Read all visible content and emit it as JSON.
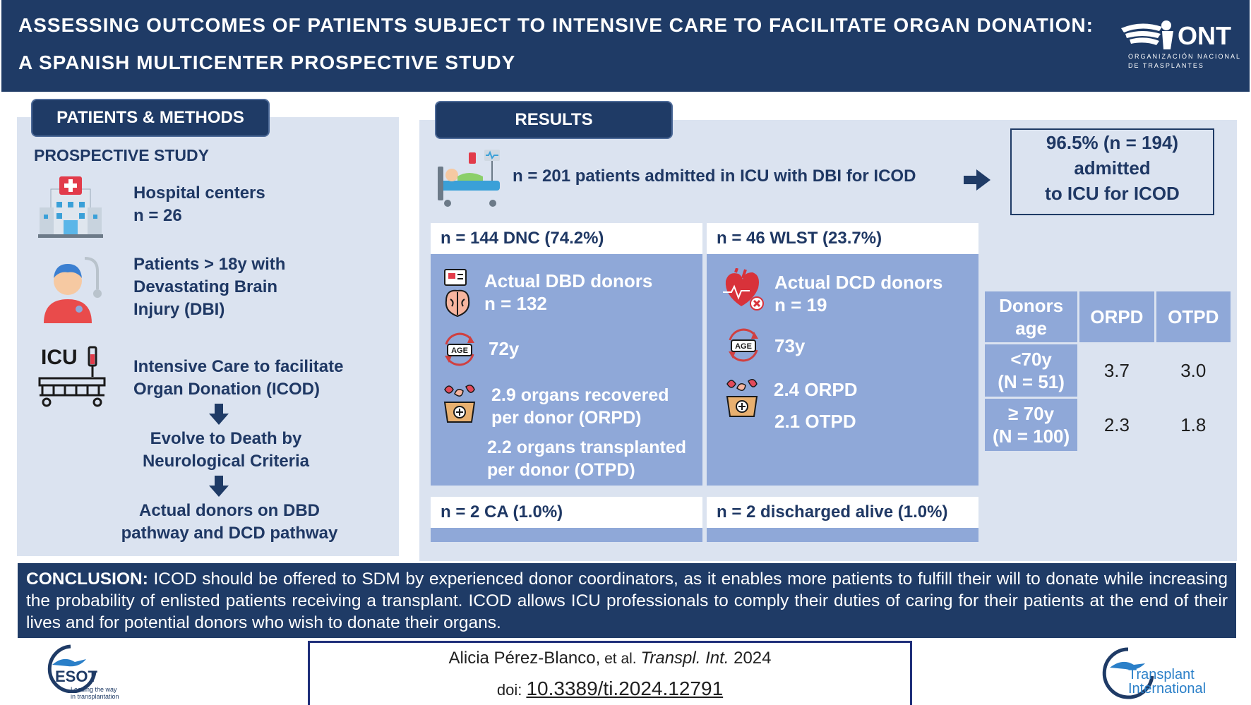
{
  "header": {
    "title_line1": "ASSESSING OUTCOMES OF PATIENTS SUBJECT TO INTENSIVE CARE TO FACILITATE ORGAN DONATION:",
    "title_line2": "A SPANISH MULTICENTER PROSPECTIVE STUDY",
    "logo_text": "ONT",
    "logo_subtext_1": "ORGANIZACIÓN NACIONAL",
    "logo_subtext_2": "DE TRASPLANTES"
  },
  "methods": {
    "tab_label": "PATIENTS & METHODS",
    "subtitle": "PROSPECTIVE STUDY",
    "hospital_line1": "Hospital centers",
    "hospital_line2": "n = 26",
    "patients_line1": "Patients > 18y with",
    "patients_line2": "Devastating Brain",
    "patients_line3": "Injury (DBI)",
    "icu_label": "ICU",
    "icod_line1": "Intensive Care to facilitate",
    "icod_line2": "Organ Donation (ICOD)",
    "evolve_line1": "Evolve to Death by",
    "evolve_line2": "Neurological Criteria",
    "actual_line1": "Actual donors on DBD",
    "actual_line2": "pathway and DCD pathway"
  },
  "results": {
    "tab_label": "RESULTS",
    "admitted_text": "n = 201 patients admitted in ICU with DBI for ICOD",
    "box_line1": "96.5% (n = 194)",
    "box_line2": "admitted",
    "box_line3": "to ICU  for ICOD",
    "dnc": {
      "header": "n = 144 DNC (74.2%)",
      "donors_line1": "Actual DBD donors",
      "donors_line2": "n = 132",
      "age": "72y",
      "orpd_line1": "2.9 organs recovered",
      "orpd_line2": "per donor (ORPD)",
      "otpd_line1": "2.2 organs transplanted",
      "otpd_line2": "per donor (OTPD)",
      "footer": "n = 2 CA (1.0%)"
    },
    "wlst": {
      "header": "n = 46 WLST (23.7%)",
      "donors_line1": "Actual DCD donors",
      "donors_line2": "n = 19",
      "age": "73y",
      "orpd": "2.4 ORPD",
      "otpd": "2.1 OTPD",
      "footer": "n = 2 discharged alive (1.0%)"
    },
    "table": {
      "col1_line1": "Donors",
      "col1_line2": "age",
      "col2": "ORPD",
      "col3": "OTPD",
      "rows": [
        {
          "label_line1": "<70y",
          "label_line2": "(N = 51)",
          "orpd": "3.7",
          "otpd": "3.0"
        },
        {
          "label_line1": "≥ 70y",
          "label_line2": "(N = 100)",
          "orpd": "2.3",
          "otpd": "1.8"
        }
      ]
    },
    "age_badge": "AGE"
  },
  "conclusion": {
    "label": "CONCLUSION:",
    "text": " ICOD should be offered to SDM by experienced donor coordinators, as it enables more patients to fulfill their will to donate while increasing the probability of enlisted patients receiving a transplant. ICOD allows ICU professionals to comply their duties of caring for their patients at the end of their lives and for potential donors who wish to donate their organs."
  },
  "citation": {
    "author": "Alicia Pérez-Blanco,",
    "etal": " et al. ",
    "journal": "Transpl. Int.",
    "year": " 2024",
    "doi_label": "doi: ",
    "doi": "10.3389/ti.2024.12791"
  },
  "footer_logos": {
    "esot_name": "ESOT",
    "esot_tagline_1": "Leading the way",
    "esot_tagline_2": "in transplantation",
    "ti_line1": "Transplant",
    "ti_line2": "International"
  },
  "colors": {
    "navy": "#1f3b66",
    "panel": "#dbe3f0",
    "accent_blue": "#8fa8d8"
  }
}
